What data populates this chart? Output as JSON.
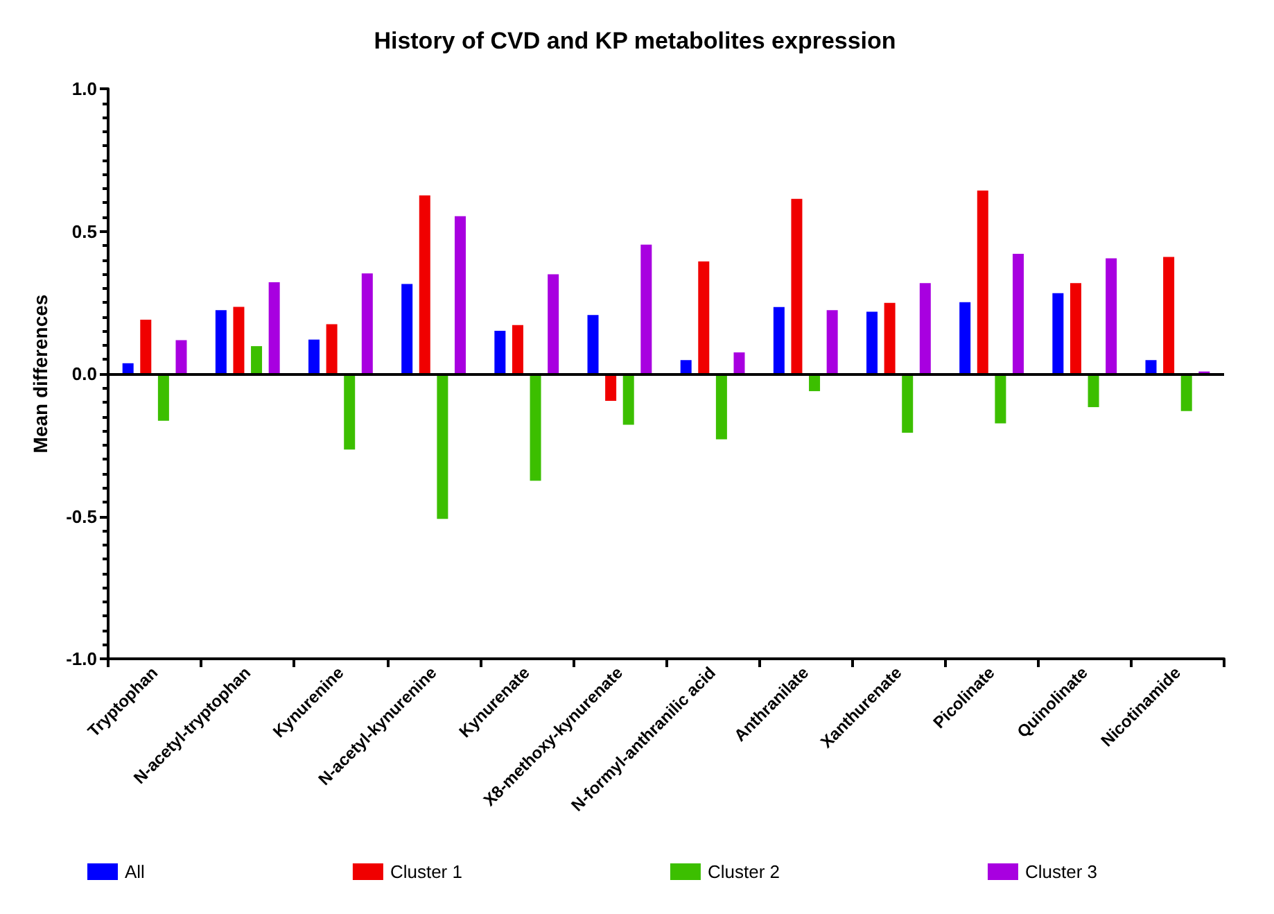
{
  "chart_data": {
    "type": "bar",
    "title": "History of CVD and KP metabolites expression",
    "ylabel": "Mean differences",
    "categories": [
      "Tryptophan",
      "N-acetyl-tryptophan",
      "Kynurenine",
      "N-acetyl-kynurenine",
      "Kynurenate",
      "X8-methoxy-kynurenate",
      "N-formyl-anthranilic acid",
      "Anthranilate",
      "Xanthurenate",
      "Picolinate",
      "Quinolinate",
      "Nicotinamide"
    ],
    "series": [
      {
        "name": "All",
        "color": "#0000ff",
        "values": [
          0.037,
          0.223,
          0.12,
          0.315,
          0.151,
          0.206,
          0.048,
          0.234,
          0.218,
          0.251,
          0.283,
          0.048
        ]
      },
      {
        "name": "Cluster 1",
        "color": "#f00000",
        "values": [
          0.19,
          0.235,
          0.174,
          0.626,
          0.171,
          -0.095,
          0.394,
          0.614,
          0.249,
          0.643,
          0.318,
          0.41
        ]
      },
      {
        "name": "Cluster 2",
        "color": "#3cbf00",
        "values": [
          -0.165,
          0.097,
          -0.266,
          -0.509,
          -0.375,
          -0.179,
          -0.23,
          -0.061,
          -0.207,
          -0.174,
          -0.117,
          -0.131
        ]
      },
      {
        "name": "Cluster 3",
        "color": "#a800e0",
        "values": [
          0.118,
          0.321,
          0.352,
          0.553,
          0.349,
          0.453,
          0.075,
          0.223,
          0.318,
          0.421,
          0.405,
          0.008
        ]
      }
    ],
    "ylim": [
      -1,
      1
    ],
    "yticks": [
      {
        "value": -1,
        "label": "-1.0"
      },
      {
        "value": -0.5,
        "label": "-0.5"
      },
      {
        "value": 0,
        "label": "0.0"
      },
      {
        "value": 0.5,
        "label": "0.5"
      },
      {
        "value": 1,
        "label": "1.0"
      }
    ],
    "ref_lines": [
      {
        "axis": "y",
        "value": 0
      }
    ],
    "grid": false,
    "legend": "bottom"
  }
}
